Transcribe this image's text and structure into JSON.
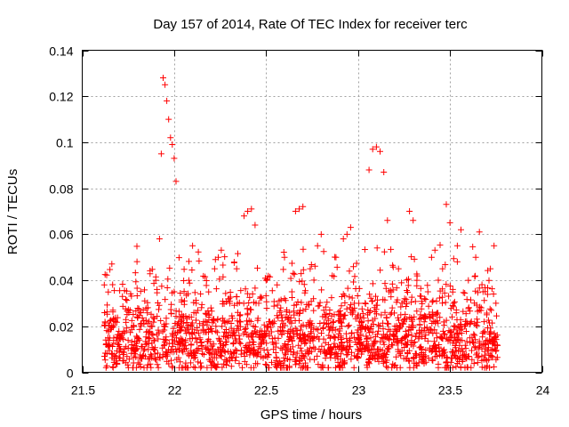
{
  "chart_data": {
    "type": "scatter",
    "title": "Day 157 of 2014, Rate Of TEC Index for receiver terc",
    "xlabel": "GPS time / hours",
    "ylabel": "ROTI / TECUs",
    "xlim": [
      21.5,
      24
    ],
    "ylim": [
      0,
      0.14
    ],
    "x_ticks": [
      21.5,
      22,
      22.5,
      23,
      23.5,
      24
    ],
    "x_tick_labels": [
      "21.5",
      "22",
      "22.5",
      "23",
      "23.5",
      "24"
    ],
    "y_ticks": [
      0,
      0.02,
      0.04,
      0.06,
      0.08,
      0.1,
      0.12,
      0.14
    ],
    "y_tick_labels": [
      "0",
      "0.02",
      "0.04",
      "0.06",
      "0.08",
      "0.1",
      "0.12",
      "0.14"
    ],
    "grid": true,
    "marker": "+",
    "marker_color": "#ff0000",
    "series": [
      {
        "name": "ROTI",
        "points": [
          [
            21.62,
            0.038
          ],
          [
            21.64,
            0.015
          ],
          [
            21.66,
            0.008
          ],
          [
            21.68,
            0.022
          ],
          [
            21.7,
            0.012
          ],
          [
            21.72,
            0.005
          ],
          [
            21.74,
            0.018
          ],
          [
            21.76,
            0.027
          ],
          [
            21.78,
            0.01
          ],
          [
            21.8,
            0.024
          ],
          [
            21.82,
            0.006
          ],
          [
            21.84,
            0.031
          ],
          [
            21.86,
            0.015
          ],
          [
            21.88,
            0.02
          ],
          [
            21.9,
            0.04
          ],
          [
            21.92,
            0.058
          ],
          [
            21.93,
            0.095
          ],
          [
            21.94,
            0.128
          ],
          [
            21.95,
            0.125
          ],
          [
            21.96,
            0.118
          ],
          [
            21.97,
            0.11
          ],
          [
            21.98,
            0.102
          ],
          [
            21.99,
            0.099
          ],
          [
            22.0,
            0.093
          ],
          [
            22.01,
            0.083
          ],
          [
            22.0,
            0.035
          ],
          [
            22.02,
            0.012
          ],
          [
            22.04,
            0.025
          ],
          [
            22.06,
            0.018
          ],
          [
            22.08,
            0.04
          ],
          [
            22.1,
            0.055
          ],
          [
            22.12,
            0.03
          ],
          [
            22.14,
            0.015
          ],
          [
            22.16,
            0.022
          ],
          [
            22.18,
            0.01
          ],
          [
            22.2,
            0.028
          ],
          [
            22.22,
            0.045
          ],
          [
            22.24,
            0.05
          ],
          [
            22.26,
            0.02
          ],
          [
            22.28,
            0.012
          ],
          [
            22.3,
            0.032
          ],
          [
            22.32,
            0.018
          ],
          [
            22.34,
            0.045
          ],
          [
            22.36,
            0.025
          ],
          [
            22.38,
            0.068
          ],
          [
            22.4,
            0.07
          ],
          [
            22.42,
            0.071
          ],
          [
            22.44,
            0.064
          ],
          [
            22.46,
            0.03
          ],
          [
            22.48,
            0.015
          ],
          [
            22.5,
            0.04
          ],
          [
            22.52,
            0.022
          ],
          [
            22.54,
            0.01
          ],
          [
            22.56,
            0.038
          ],
          [
            22.58,
            0.028
          ],
          [
            22.6,
            0.05
          ],
          [
            22.62,
            0.012
          ],
          [
            22.64,
            0.035
          ],
          [
            22.66,
            0.07
          ],
          [
            22.68,
            0.071
          ],
          [
            22.7,
            0.072
          ],
          [
            22.72,
            0.02
          ],
          [
            22.74,
            0.045
          ],
          [
            22.76,
            0.015
          ],
          [
            22.78,
            0.055
          ],
          [
            22.8,
            0.06
          ],
          [
            22.82,
            0.025
          ],
          [
            22.84,
            0.012
          ],
          [
            22.86,
            0.042
          ],
          [
            22.88,
            0.05
          ],
          [
            22.9,
            0.018
          ],
          [
            22.92,
            0.058
          ],
          [
            22.94,
            0.06
          ],
          [
            22.96,
            0.063
          ],
          [
            22.98,
            0.03
          ],
          [
            23.0,
            0.015
          ],
          [
            23.02,
            0.022
          ],
          [
            23.04,
            0.01
          ],
          [
            23.06,
            0.088
          ],
          [
            23.08,
            0.097
          ],
          [
            23.1,
            0.098
          ],
          [
            23.12,
            0.096
          ],
          [
            23.14,
            0.087
          ],
          [
            23.16,
            0.066
          ],
          [
            23.18,
            0.035
          ],
          [
            23.2,
            0.02
          ],
          [
            23.22,
            0.045
          ],
          [
            23.24,
            0.03
          ],
          [
            23.26,
            0.012
          ],
          [
            23.28,
            0.07
          ],
          [
            23.3,
            0.066
          ],
          [
            23.32,
            0.04
          ],
          [
            23.34,
            0.025
          ],
          [
            23.36,
            0.018
          ],
          [
            23.38,
            0.035
          ],
          [
            23.4,
            0.05
          ],
          [
            23.42,
            0.022
          ],
          [
            23.44,
            0.012
          ],
          [
            23.46,
            0.045
          ],
          [
            23.48,
            0.073
          ],
          [
            23.5,
            0.065
          ],
          [
            23.52,
            0.03
          ],
          [
            23.54,
            0.055
          ],
          [
            23.56,
            0.062
          ],
          [
            23.58,
            0.02
          ],
          [
            23.6,
            0.04
          ],
          [
            23.62,
            0.015
          ],
          [
            23.64,
            0.05
          ],
          [
            23.66,
            0.061
          ],
          [
            23.68,
            0.035
          ],
          [
            23.7,
            0.025
          ],
          [
            23.72,
            0.045
          ],
          [
            23.74,
            0.055
          ],
          [
            23.75,
            0.03
          ]
        ],
        "bulk_cloud": {
          "x_range": [
            21.62,
            23.76
          ],
          "lower_band": [
            0.002,
            0.03
          ],
          "scattered_band": [
            0.005,
            0.055
          ],
          "point_count": 1900,
          "seed": 157
        }
      }
    ]
  }
}
